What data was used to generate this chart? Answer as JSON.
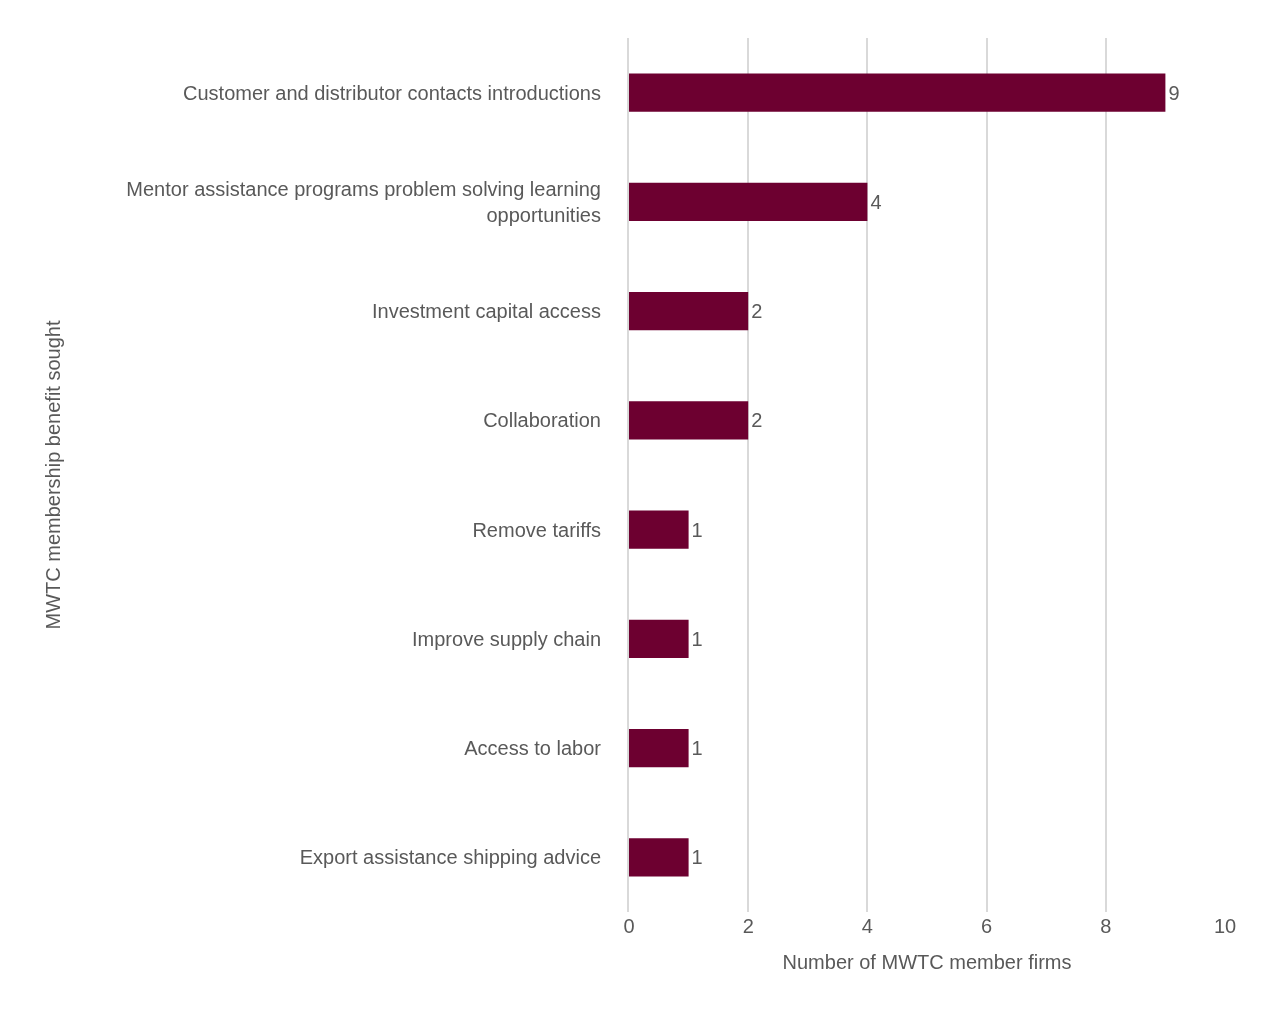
{
  "chart_data": {
    "type": "bar",
    "orientation": "horizontal",
    "xlabel": "Number of MWTC member firms",
    "ylabel": "MWTC membership benefit sought",
    "categories": [
      "Customer and distributor contacts introductions",
      "Mentor assistance programs problem solving learning opportunities",
      "Investment capital access",
      "Collaboration",
      "Remove tariffs",
      "Improve supply chain",
      "Access to labor",
      "Export assistance shipping advice"
    ],
    "values": [
      9,
      4,
      2,
      2,
      1,
      1,
      1,
      1
    ],
    "color": "#6d0030",
    "xlim": [
      0,
      10
    ],
    "xticks": [
      0,
      2,
      4,
      6,
      8,
      10
    ],
    "grid": "x",
    "data_labels": true,
    "legend": false
  }
}
